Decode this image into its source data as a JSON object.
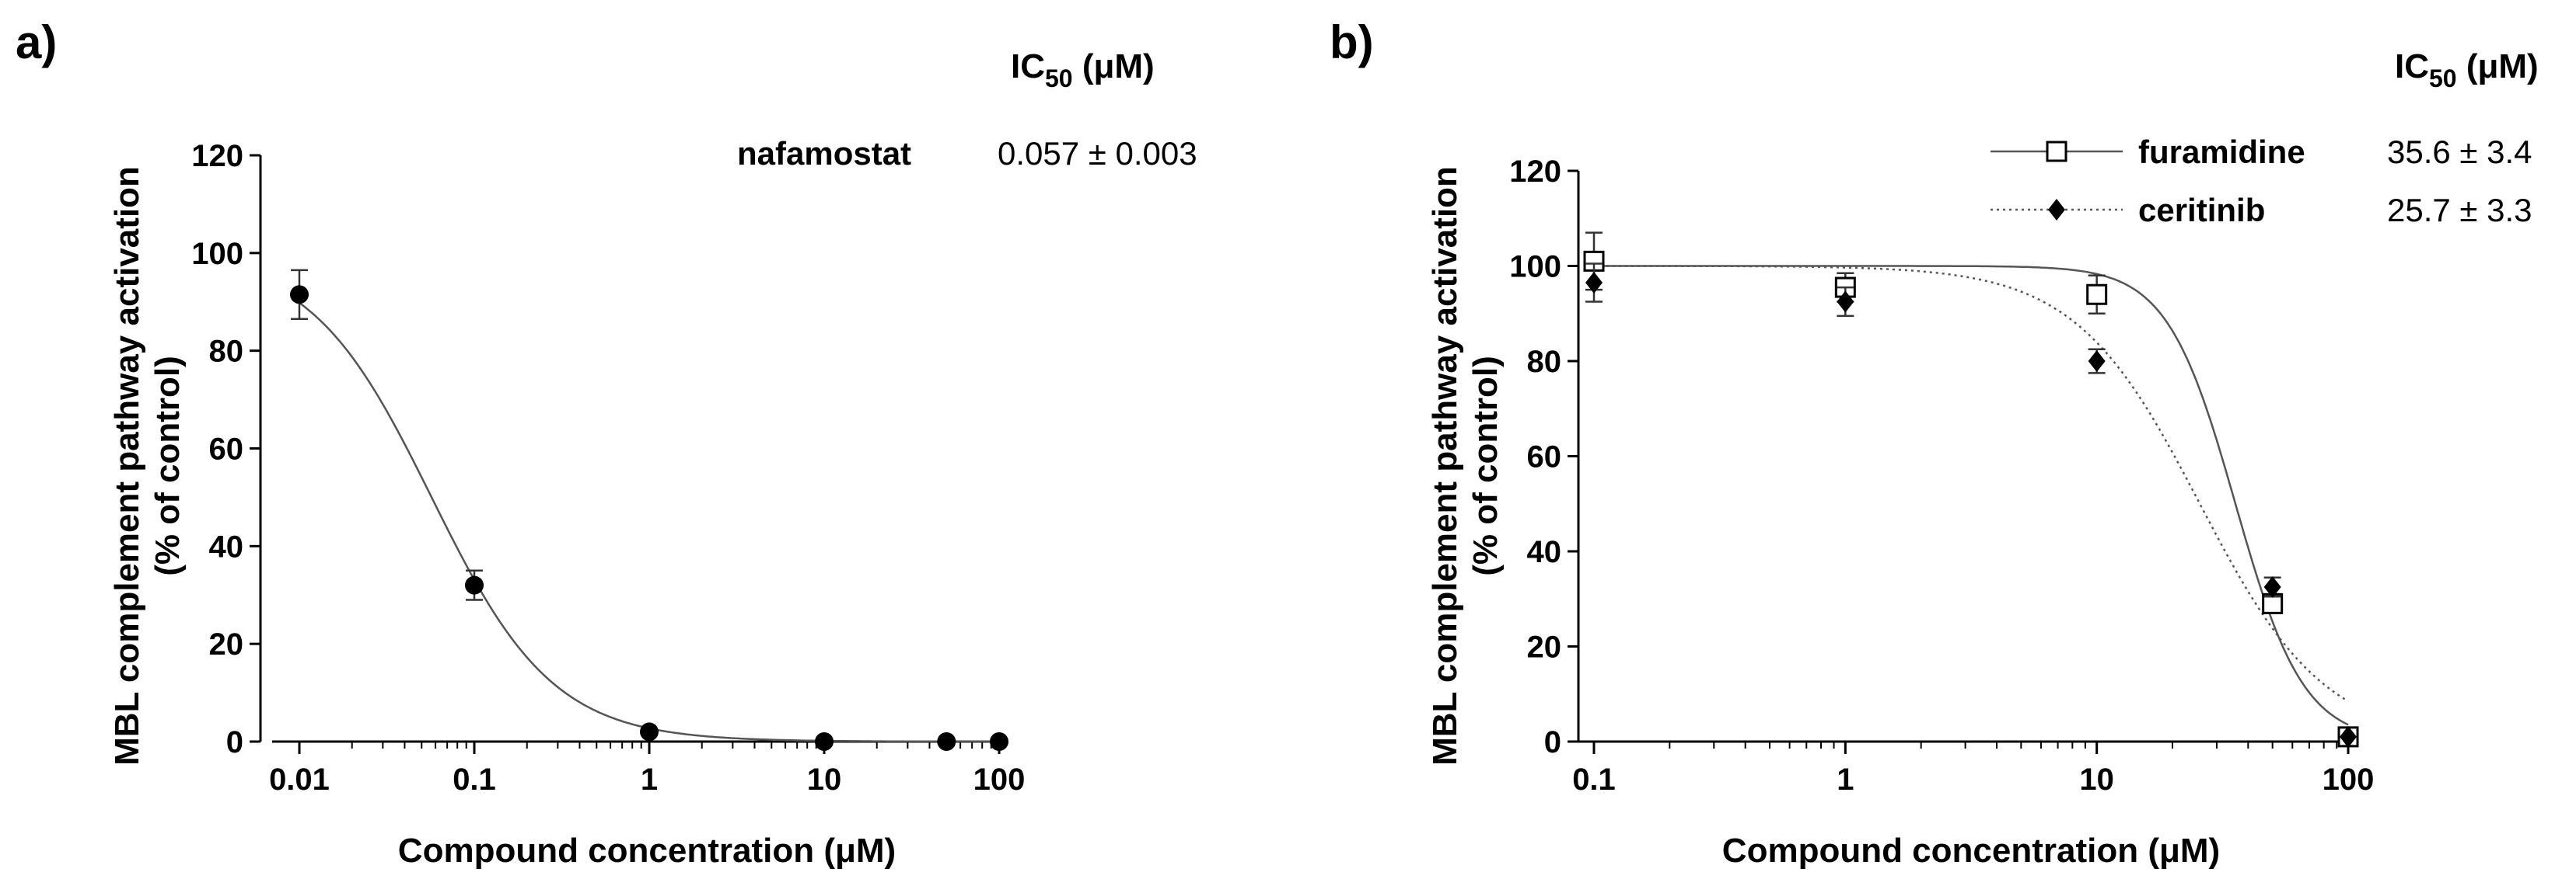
{
  "chart_data": [
    {
      "panel": "a)",
      "type": "scatter",
      "xscale": "log",
      "xlim": [
        0.01,
        100
      ],
      "ylim": [
        0,
        120
      ],
      "xticks": [
        0.01,
        0.1,
        1,
        10,
        100
      ],
      "xtick_labels": [
        "0.01",
        "0.1",
        "1",
        "10",
        "100"
      ],
      "yticks": [
        0,
        20,
        40,
        60,
        80,
        100,
        120
      ],
      "ytick_labels": [
        "0",
        "20",
        "40",
        "60",
        "80",
        "100",
        "120"
      ],
      "xlabel": "Compound concentration (μM)",
      "ylabel": "MBL complement pathway activation",
      "ylabel2": "(% of control)",
      "ic50_header": "IC",
      "ic50_sub": "50",
      "ic50_unit": " (μM)",
      "series": [
        {
          "name": "nafamostat",
          "ic50": "0.057 ± 0.003",
          "marker": "circle",
          "line": "solid",
          "fit": {
            "top": 100,
            "bottom": 0,
            "ic50": 0.057,
            "hill": 1.25
          },
          "x": [
            0.01,
            0.1,
            1,
            10,
            50,
            100
          ],
          "y": [
            91.5,
            32,
            2,
            0,
            0,
            0
          ],
          "err": [
            5,
            3,
            0,
            0,
            0,
            0
          ]
        }
      ]
    },
    {
      "panel": "b)",
      "type": "scatter",
      "xscale": "log",
      "xlim": [
        0.1,
        100
      ],
      "ylim": [
        0,
        120
      ],
      "xticks": [
        0.1,
        1,
        10,
        100
      ],
      "xtick_labels": [
        "0.1",
        "1",
        "10",
        "100"
      ],
      "yticks": [
        0,
        20,
        40,
        60,
        80,
        100,
        120
      ],
      "ytick_labels": [
        "0",
        "20",
        "40",
        "60",
        "80",
        "100",
        "120"
      ],
      "xlabel": "Compound concentration (μM)",
      "ylabel": "MBL complement pathway activation",
      "ylabel2": "(% of control)",
      "ic50_header": "IC",
      "ic50_sub": "50",
      "ic50_unit": " (μM)",
      "series": [
        {
          "name": "furamidine",
          "ic50": "35.6 ± 3.4",
          "marker": "open-square",
          "line": "solid",
          "fit": {
            "top": 100,
            "bottom": 0,
            "ic50": 35.6,
            "hill": 3.2
          },
          "x": [
            0.1,
            1,
            10,
            50,
            100
          ],
          "y": [
            101,
            95.5,
            94,
            29,
            1
          ],
          "err": [
            6,
            3,
            4,
            2,
            1
          ]
        },
        {
          "name": "ceritinib",
          "ic50": "25.7 ± 3.3",
          "marker": "filled-diamond",
          "line": "dotted",
          "fit": {
            "top": 100,
            "bottom": 0,
            "ic50": 25.7,
            "hill": 1.75
          },
          "x": [
            0.1,
            1,
            10,
            50,
            100
          ],
          "y": [
            96.5,
            92.5,
            80,
            32.5,
            1
          ],
          "err": [
            4,
            3,
            2.5,
            2,
            0
          ]
        }
      ]
    }
  ]
}
